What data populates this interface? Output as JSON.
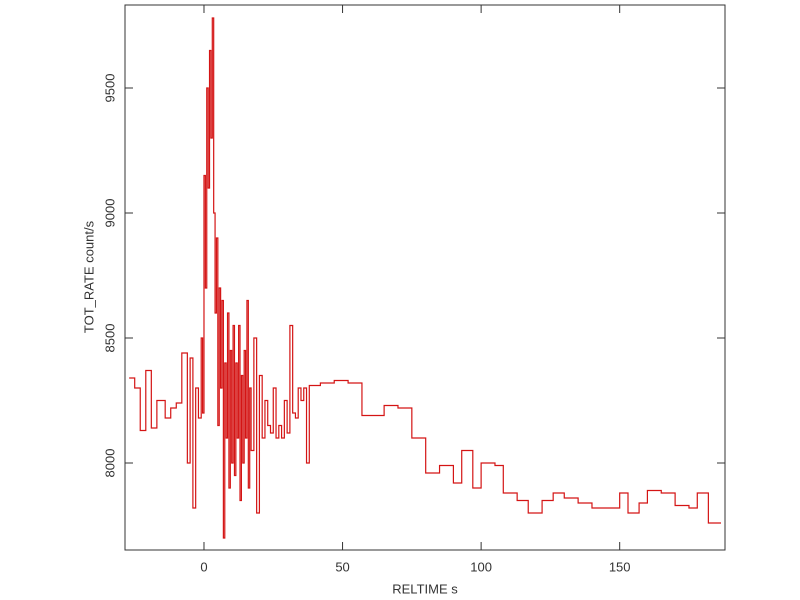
{
  "chart_data": {
    "type": "step",
    "xlabel": "RELTIME  s",
    "ylabel": "TOT_RATE  count/s",
    "xlim": [
      -28.5,
      188
    ],
    "ylim": [
      7652,
      9832
    ],
    "xticks": [
      0,
      50,
      100,
      150
    ],
    "yticks": [
      8000,
      8500,
      9000,
      9500
    ],
    "series": [
      {
        "name": "TOT_RATE",
        "color": "#d41414",
        "x": [
          -27,
          -25,
          -23,
          -21,
          -19,
          -17,
          -14,
          -12,
          -10,
          -8,
          -6,
          -5,
          -4,
          -3,
          -2,
          -1,
          -0.5,
          0,
          0.5,
          1,
          1.5,
          2,
          2.5,
          3,
          3.5,
          4,
          4.5,
          5,
          5.5,
          6,
          6.5,
          7,
          7.5,
          8,
          8.5,
          9,
          9.5,
          10,
          10.5,
          11,
          11.5,
          12,
          12.5,
          13,
          13.5,
          14,
          14.5,
          15,
          15.5,
          16,
          16.5,
          17,
          18,
          19,
          20,
          21,
          22,
          23,
          24,
          25,
          26,
          27,
          28,
          29,
          30,
          31,
          32,
          33,
          34,
          35,
          36,
          37,
          38,
          42,
          47,
          52,
          57,
          62,
          65,
          70,
          75,
          80,
          85,
          90,
          93,
          97,
          100,
          105,
          108,
          113,
          117,
          122,
          126,
          130,
          135,
          140,
          145,
          150,
          153,
          157,
          160,
          165,
          170,
          175,
          178,
          182
        ],
        "values": [
          8340,
          8300,
          8130,
          8370,
          8140,
          8250,
          8180,
          8220,
          8240,
          8440,
          8000,
          8420,
          7820,
          8300,
          8180,
          8500,
          8200,
          9150,
          8700,
          9500,
          9100,
          9650,
          9300,
          9780,
          9000,
          8600,
          8900,
          8150,
          8700,
          8300,
          8650,
          7700,
          8400,
          8100,
          8600,
          7900,
          8450,
          8000,
          8550,
          7950,
          8400,
          8100,
          8550,
          7850,
          8350,
          8000,
          8450,
          8100,
          8650,
          7900,
          8300,
          8050,
          8500,
          7800,
          8350,
          8100,
          8250,
          8150,
          8120,
          8300,
          8100,
          8150,
          8100,
          8250,
          8120,
          8550,
          8200,
          8180,
          8300,
          8250,
          8300,
          8000,
          8310,
          8320,
          8330,
          8320,
          8190,
          8190,
          8230,
          8220,
          8100,
          7960,
          7990,
          7920,
          8050,
          7900,
          8000,
          7990,
          7880,
          7850,
          7800,
          7850,
          7880,
          7860,
          7840,
          7820,
          7820,
          7880,
          7800,
          7840,
          7890,
          7880,
          7830,
          7820,
          7880,
          7760
        ]
      }
    ]
  }
}
